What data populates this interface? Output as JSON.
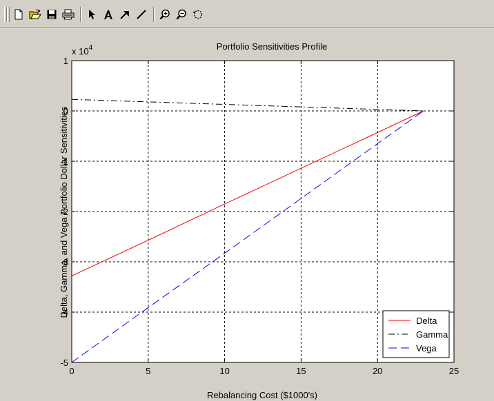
{
  "toolbar": {
    "buttons": [
      {
        "icon": "new-file-icon"
      },
      {
        "icon": "open-folder-icon"
      },
      {
        "icon": "save-disk-icon"
      },
      {
        "icon": "print-icon"
      },
      {
        "icon": "arrow-select-icon"
      },
      {
        "icon": "text-insert-icon"
      },
      {
        "icon": "arrow-insert-icon"
      },
      {
        "icon": "line-insert-icon"
      },
      {
        "icon": "zoom-in-icon"
      },
      {
        "icon": "zoom-out-icon"
      },
      {
        "icon": "rotate-icon"
      }
    ]
  },
  "chart_data": {
    "type": "line",
    "title": "Portfolio Sensitivities Profile",
    "xlabel": "Rebalancing Cost ($1000's)",
    "ylabel": "Delta, Gamma, and Vega Portfolio Dollar Sensitivities",
    "y_exponent_label": "x 10",
    "y_exponent_power": "4",
    "xlim": [
      0,
      25
    ],
    "ylim": [
      -50000,
      10000
    ],
    "xticks": [
      0,
      5,
      10,
      15,
      20,
      25
    ],
    "xtick_labels": [
      "0",
      "5",
      "10",
      "15",
      "20",
      "25"
    ],
    "yticks": [
      -50000,
      -40000,
      -30000,
      -20000,
      -10000,
      0,
      10000
    ],
    "ytick_labels": [
      "-5",
      "-4",
      "-3",
      "-2",
      "-1",
      "0",
      "1"
    ],
    "grid": true,
    "legend_position": "bottom-right",
    "series": [
      {
        "name": "Delta",
        "color": "#ff0000",
        "style": "solid",
        "x": [
          0,
          5,
          10,
          15,
          20,
          23
        ],
        "y": [
          -32800,
          -25700,
          -18500,
          -11400,
          -4300,
          0
        ]
      },
      {
        "name": "Gamma",
        "color": "#000000",
        "style": "dashdot",
        "x": [
          0,
          5,
          10,
          15,
          20,
          23
        ],
        "y": [
          2300,
          1800,
          1300,
          800,
          300,
          0
        ]
      },
      {
        "name": "Vega",
        "color": "#0000ff",
        "style": "dashed",
        "x": [
          0,
          5,
          10,
          15,
          20,
          23
        ],
        "y": [
          -50000,
          -39100,
          -28300,
          -17400,
          -6500,
          0
        ]
      }
    ]
  }
}
